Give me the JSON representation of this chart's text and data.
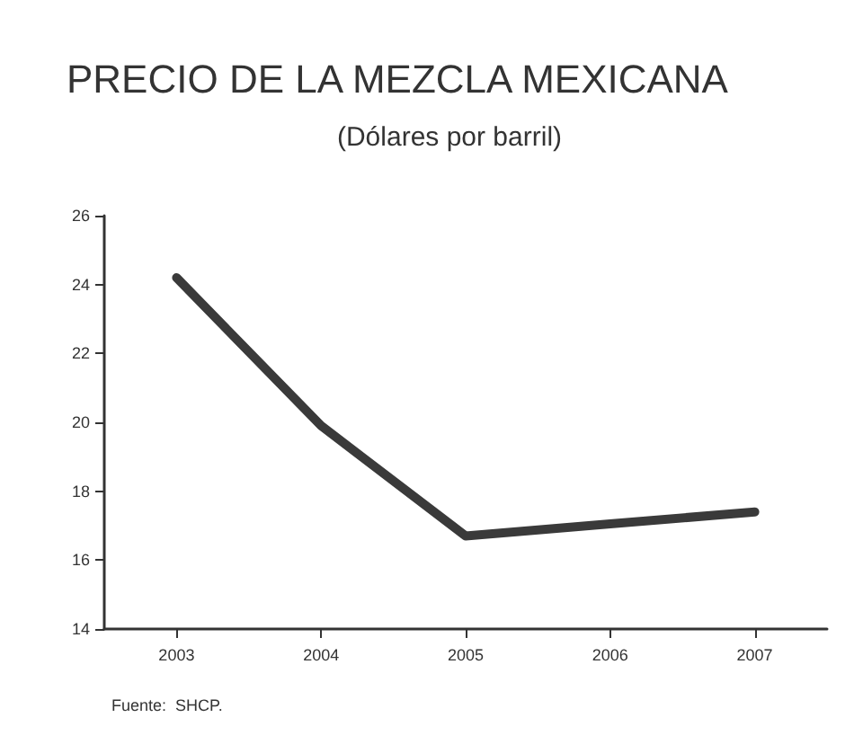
{
  "chart_data": {
    "type": "line",
    "title": "PRECIO DE LA MEZCLA MEXICANA",
    "subtitle": "(Dólares por barril)",
    "annotations": [
      "Fuente:  SHCP."
    ],
    "categories": [
      "2003",
      "2004",
      "2005",
      "2006",
      "2007"
    ],
    "series": [
      {
        "color": "#3a3a3a",
        "values": [
          24.2,
          19.9,
          16.7,
          17.05,
          17.4
        ]
      }
    ],
    "ylim": [
      14,
      26
    ],
    "yticks": [
      14,
      16,
      18,
      20,
      22,
      24,
      26
    ],
    "grid": false,
    "marker": "none",
    "line_style": "solid"
  }
}
